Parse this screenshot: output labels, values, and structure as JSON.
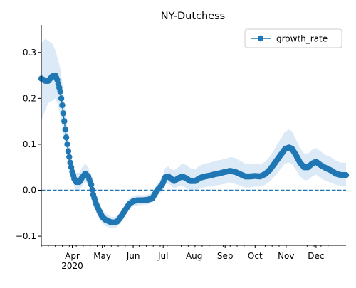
{
  "chart_data": {
    "type": "line",
    "title": "NY-Dutchess",
    "xlabel": "",
    "ylabel": "",
    "x_start": "2020-03-01",
    "xlim": [
      "2020-03-01",
      "2020-12-31"
    ],
    "ylim": [
      -0.12,
      0.36
    ],
    "yticks": [
      -0.1,
      0.0,
      0.1,
      0.2,
      0.3
    ],
    "ytick_labels": [
      "−0.1",
      "0.0",
      "0.1",
      "0.2",
      "0.3"
    ],
    "xticks": [
      {
        "date": "2020-04-01",
        "label": "Apr",
        "sublabel": "2020"
      },
      {
        "date": "2020-05-01",
        "label": "May",
        "sublabel": ""
      },
      {
        "date": "2020-06-01",
        "label": "Jun",
        "sublabel": ""
      },
      {
        "date": "2020-07-01",
        "label": "Jul",
        "sublabel": ""
      },
      {
        "date": "2020-08-01",
        "label": "Aug",
        "sublabel": ""
      },
      {
        "date": "2020-09-01",
        "label": "Sep",
        "sublabel": ""
      },
      {
        "date": "2020-10-01",
        "label": "Oct",
        "sublabel": ""
      },
      {
        "date": "2020-11-01",
        "label": "Nov",
        "sublabel": ""
      },
      {
        "date": "2020-12-01",
        "label": "Dec",
        "sublabel": ""
      }
    ],
    "grid": false,
    "legend": {
      "position": "top-right",
      "entries": [
        "growth_rate"
      ]
    },
    "reference_line": {
      "y": 0.0,
      "style": "dashed"
    },
    "colors": {
      "line": "#1f77b4",
      "band": "#dce9f6"
    },
    "series": [
      {
        "name": "growth_rate",
        "x": [
          "2020-03-01",
          "2020-03-05",
          "2020-03-08",
          "2020-03-12",
          "2020-03-15",
          "2020-03-17",
          "2020-03-20",
          "2020-03-22",
          "2020-03-24",
          "2020-03-26",
          "2020-03-28",
          "2020-03-30",
          "2020-04-01",
          "2020-04-03",
          "2020-04-05",
          "2020-04-08",
          "2020-04-11",
          "2020-04-14",
          "2020-04-17",
          "2020-04-20",
          "2020-04-22",
          "2020-04-25",
          "2020-04-28",
          "2020-05-01",
          "2020-05-04",
          "2020-05-07",
          "2020-05-10",
          "2020-05-13",
          "2020-05-16",
          "2020-05-19",
          "2020-05-22",
          "2020-05-25",
          "2020-05-28",
          "2020-06-01",
          "2020-06-05",
          "2020-06-10",
          "2020-06-15",
          "2020-06-20",
          "2020-06-25",
          "2020-06-30",
          "2020-07-03",
          "2020-07-06",
          "2020-07-09",
          "2020-07-12",
          "2020-07-16",
          "2020-07-20",
          "2020-07-24",
          "2020-07-28",
          "2020-08-02",
          "2020-08-07",
          "2020-08-12",
          "2020-08-17",
          "2020-08-22",
          "2020-08-27",
          "2020-09-01",
          "2020-09-06",
          "2020-09-11",
          "2020-09-16",
          "2020-09-21",
          "2020-09-26",
          "2020-10-01",
          "2020-10-06",
          "2020-10-11",
          "2020-10-16",
          "2020-10-21",
          "2020-10-26",
          "2020-10-31",
          "2020-11-04",
          "2020-11-07",
          "2020-11-11",
          "2020-11-15",
          "2020-11-19",
          "2020-11-23",
          "2020-11-27",
          "2020-12-01",
          "2020-12-06",
          "2020-12-11",
          "2020-12-16",
          "2020-12-21",
          "2020-12-26",
          "2020-12-31"
        ],
        "values": [
          0.243,
          0.238,
          0.238,
          0.248,
          0.25,
          0.24,
          0.215,
          0.185,
          0.15,
          0.115,
          0.085,
          0.06,
          0.04,
          0.025,
          0.018,
          0.018,
          0.028,
          0.036,
          0.03,
          0.012,
          -0.01,
          -0.03,
          -0.045,
          -0.058,
          -0.064,
          -0.067,
          -0.07,
          -0.07,
          -0.068,
          -0.06,
          -0.05,
          -0.04,
          -0.03,
          -0.024,
          -0.022,
          -0.022,
          -0.021,
          -0.018,
          0.0,
          0.012,
          0.028,
          0.03,
          0.025,
          0.02,
          0.026,
          0.03,
          0.026,
          0.02,
          0.02,
          0.027,
          0.03,
          0.032,
          0.035,
          0.037,
          0.04,
          0.042,
          0.04,
          0.035,
          0.03,
          0.03,
          0.031,
          0.03,
          0.035,
          0.045,
          0.06,
          0.075,
          0.09,
          0.093,
          0.09,
          0.076,
          0.06,
          0.05,
          0.05,
          0.058,
          0.062,
          0.054,
          0.048,
          0.043,
          0.036,
          0.033,
          0.033
        ],
        "lower": [
          0.15,
          0.175,
          0.19,
          0.195,
          0.2,
          0.19,
          0.165,
          0.14,
          0.11,
          0.085,
          0.06,
          0.04,
          0.022,
          0.008,
          0.0,
          0.0,
          0.01,
          0.018,
          0.012,
          -0.008,
          -0.03,
          -0.05,
          -0.062,
          -0.072,
          -0.078,
          -0.08,
          -0.082,
          -0.082,
          -0.08,
          -0.072,
          -0.062,
          -0.052,
          -0.042,
          -0.035,
          -0.033,
          -0.032,
          -0.031,
          -0.028,
          -0.012,
          -0.002,
          0.012,
          0.014,
          0.01,
          0.004,
          0.008,
          0.01,
          0.005,
          0.0,
          0.0,
          0.004,
          0.007,
          0.008,
          0.01,
          0.012,
          0.014,
          0.016,
          0.014,
          0.01,
          0.006,
          0.006,
          0.008,
          0.008,
          0.012,
          0.02,
          0.032,
          0.045,
          0.058,
          0.06,
          0.057,
          0.044,
          0.03,
          0.022,
          0.022,
          0.03,
          0.034,
          0.026,
          0.02,
          0.016,
          0.012,
          0.01,
          0.01
        ],
        "upper": [
          0.32,
          0.33,
          0.325,
          0.32,
          0.305,
          0.29,
          0.265,
          0.235,
          0.195,
          0.15,
          0.115,
          0.085,
          0.062,
          0.045,
          0.038,
          0.038,
          0.05,
          0.058,
          0.05,
          0.032,
          0.01,
          -0.01,
          -0.028,
          -0.043,
          -0.05,
          -0.054,
          -0.058,
          -0.058,
          -0.056,
          -0.048,
          -0.038,
          -0.028,
          -0.018,
          -0.012,
          -0.01,
          -0.011,
          -0.01,
          -0.006,
          0.014,
          0.028,
          0.048,
          0.052,
          0.046,
          0.044,
          0.05,
          0.058,
          0.055,
          0.048,
          0.046,
          0.054,
          0.058,
          0.06,
          0.064,
          0.066,
          0.068,
          0.072,
          0.07,
          0.064,
          0.058,
          0.056,
          0.058,
          0.056,
          0.062,
          0.074,
          0.092,
          0.11,
          0.128,
          0.132,
          0.128,
          0.11,
          0.092,
          0.08,
          0.08,
          0.088,
          0.092,
          0.084,
          0.076,
          0.072,
          0.064,
          0.06,
          0.06
        ]
      }
    ]
  }
}
